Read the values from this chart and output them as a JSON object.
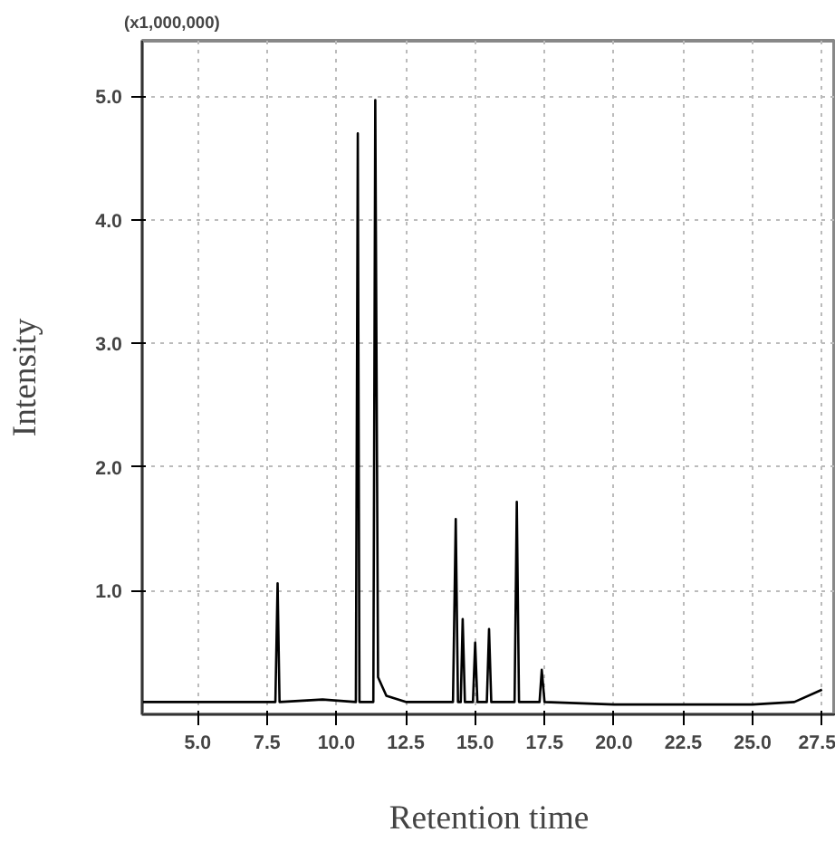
{
  "chart_data": {
    "type": "line",
    "xlabel": "Retention time",
    "ylabel": "Intensity",
    "annotations": [
      "(x1,000,000)"
    ],
    "series": [
      {
        "color": "#000000",
        "x": [
          3.0,
          4.5,
          7.8,
          7.88,
          7.95,
          9.5,
          10.7,
          10.77,
          10.83,
          11.33,
          11.4,
          11.5,
          11.8,
          12.5,
          14.2,
          14.3,
          14.38,
          14.48,
          14.55,
          14.63,
          14.92,
          15.0,
          15.08,
          15.42,
          15.5,
          15.58,
          16.42,
          16.5,
          16.58,
          17.32,
          17.4,
          17.5,
          20.0,
          25.0,
          26.5,
          27.5
        ],
        "values": [
          0.1,
          0.1,
          0.1,
          1.06,
          0.1,
          0.12,
          0.1,
          4.7,
          0.1,
          0.1,
          4.97,
          0.3,
          0.15,
          0.1,
          0.1,
          1.58,
          0.1,
          0.1,
          0.77,
          0.1,
          0.1,
          0.58,
          0.1,
          0.1,
          0.69,
          0.1,
          0.1,
          1.72,
          0.1,
          0.1,
          0.36,
          0.1,
          0.08,
          0.08,
          0.1,
          0.2
        ]
      }
    ],
    "xlim": [
      3.0,
      28.0
    ],
    "ylim": [
      0,
      5.45
    ],
    "xticks": [
      {
        "value": 5,
        "label": "5.0"
      },
      7.5,
      {
        "value": 10,
        "label": "10.0"
      },
      12.5,
      {
        "value": 15,
        "label": "15.0"
      },
      17.5,
      {
        "value": 20,
        "label": "20.0"
      },
      22.5,
      {
        "value": 25,
        "label": "25.0"
      },
      27.5
    ],
    "yticks": [
      {
        "value": 1,
        "label": "1.0"
      },
      {
        "value": 2,
        "label": "2.0"
      },
      {
        "value": 3,
        "label": "3.0"
      },
      {
        "value": 4,
        "label": "4.0"
      },
      {
        "value": 5,
        "label": "5.0"
      }
    ],
    "grid": true,
    "line_style": "solid"
  }
}
